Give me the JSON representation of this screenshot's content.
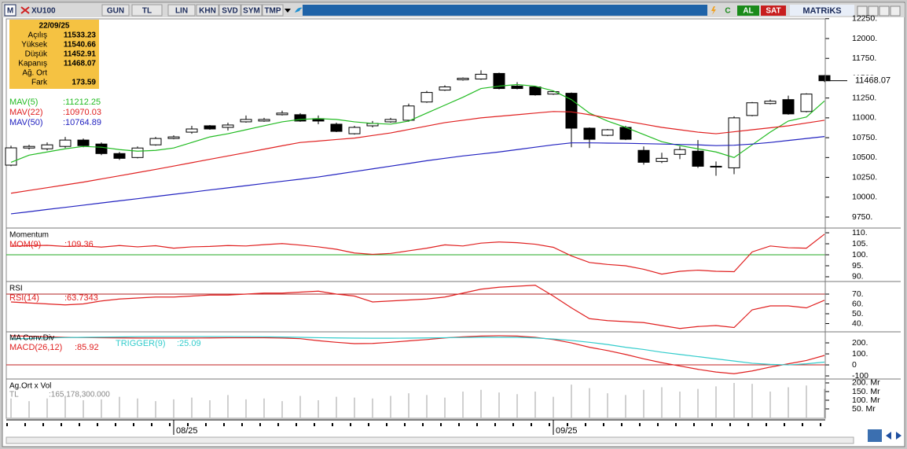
{
  "toolbar": {
    "logo": "M",
    "symbol": "XU100",
    "buttons": [
      "GUN",
      "TL",
      "LIN",
      "KHN",
      "SVD",
      "SYM",
      "TMP"
    ],
    "c": "C",
    "buy": "AL",
    "sell": "SAT",
    "brand": "MATRiKS"
  },
  "info": {
    "date": "22/09/25",
    "rows": [
      [
        "Açılış",
        "11533.23"
      ],
      [
        "Yüksek",
        "11540.66"
      ],
      [
        "Düşük",
        "11452.91"
      ],
      [
        "Kapanış",
        "11468.07"
      ],
      [
        "Ağ. Ort"
      ],
      [
        "Fark",
        "173.59"
      ]
    ]
  },
  "chart_data": [
    {
      "type": "candlestick",
      "categories": [
        null,
        null,
        null,
        null,
        null,
        null,
        null,
        null,
        null,
        "08/25",
        null,
        null,
        null,
        null,
        null,
        null,
        null,
        null,
        null,
        null,
        null,
        null,
        null,
        null,
        null,
        null,
        null,
        null,
        null,
        null,
        "09/25",
        null,
        null,
        null,
        null,
        null,
        null,
        null,
        null,
        null,
        null,
        null,
        null,
        null,
        null,
        null
      ],
      "open": [
        10404,
        10620,
        10610,
        10640,
        10720,
        10670,
        10550,
        10500,
        10660,
        10740,
        10820,
        10900,
        10880,
        10950,
        10960,
        11040,
        11040,
        10990,
        10920,
        10800,
        10900,
        10950,
        10970,
        11200,
        11350,
        11480,
        11490,
        11560,
        11400,
        11390,
        11300,
        11310,
        10870,
        10780,
        10880,
        10590,
        10450,
        10540,
        10580,
        10380,
        10370,
        11030,
        11180,
        11230,
        11080,
        11533.23
      ],
      "high": [
        10650,
        10660,
        10690,
        10760,
        10740,
        10690,
        10570,
        10640,
        10760,
        10780,
        10900,
        10910,
        10940,
        11030,
        11000,
        11090,
        11060,
        11030,
        10940,
        10900,
        10960,
        11000,
        11180,
        11340,
        11410,
        11510,
        11600,
        11570,
        11450,
        11400,
        11340,
        11320,
        10880,
        10860,
        10900,
        10640,
        10560,
        10640,
        10720,
        10450,
        11020,
        11200,
        11230,
        11280,
        11310,
        11540.66
      ],
      "low": [
        10390,
        10600,
        10590,
        10620,
        10630,
        10530,
        10470,
        10490,
        10650,
        10730,
        10800,
        10850,
        10840,
        10940,
        10950,
        11030,
        10950,
        10920,
        10820,
        10790,
        10880,
        10940,
        10950,
        11190,
        11340,
        11470,
        11480,
        11360,
        11360,
        11280,
        11290,
        10630,
        10620,
        10770,
        10720,
        10410,
        10430,
        10480,
        10370,
        10270,
        10290,
        11020,
        11170,
        11040,
        11070,
        11452.91
      ],
      "close": [
        10622,
        10640,
        10660,
        10720,
        10650,
        10550,
        10490,
        10620,
        10740,
        10760,
        10860,
        10860,
        10910,
        10980,
        10980,
        11060,
        10960,
        10960,
        10830,
        10880,
        10930,
        10980,
        11150,
        11320,
        11390,
        11500,
        11550,
        11370,
        11370,
        11290,
        11330,
        10870,
        10730,
        10850,
        10730,
        10440,
        10490,
        10600,
        10390,
        10390,
        11000,
        11190,
        11210,
        11050,
        11300,
        11468.07
      ],
      "up_color": "#ffffff",
      "down_color": "#000000",
      "last_label": "11468.07",
      "series": [
        {
          "name": "MAV(5)",
          "value_label": ":11212.25",
          "color": "#22bb22",
          "values": [
            10440,
            10530,
            10570,
            10610,
            10640,
            10630,
            10600,
            10580,
            10590,
            10620,
            10690,
            10760,
            10800,
            10850,
            10900,
            10950,
            10980,
            10990,
            10980,
            10950,
            10930,
            10920,
            10960,
            11060,
            11160,
            11260,
            11370,
            11400,
            11420,
            11400,
            11340,
            11230,
            11060,
            10960,
            10880,
            10790,
            10700,
            10650,
            10610,
            10570,
            10500,
            10660,
            10820,
            10960,
            11010,
            11212.25
          ]
        },
        {
          "name": "MAV(22)",
          "value_label": ":10970.03",
          "color": "#e02020",
          "values": [
            10050,
            10085,
            10120,
            10155,
            10190,
            10230,
            10270,
            10310,
            10350,
            10392,
            10435,
            10478,
            10520,
            10562,
            10605,
            10648,
            10690,
            10708,
            10727,
            10745,
            10778,
            10810,
            10853,
            10897,
            10940,
            10970,
            11000,
            11020,
            11040,
            11060,
            11080,
            11075,
            11040,
            11000,
            10960,
            10920,
            10880,
            10850,
            10820,
            10800,
            10825,
            10850,
            10875,
            10900,
            10935,
            10970.03
          ]
        },
        {
          "name": "MAV(50)",
          "value_label": ":10764.89",
          "color": "#2222c0",
          "values": [
            9790,
            9817,
            9845,
            9872,
            9899,
            9927,
            9954,
            9981,
            10009,
            10036,
            10063,
            10091,
            10118,
            10145,
            10173,
            10200,
            10227,
            10255,
            10289,
            10323,
            10357,
            10391,
            10425,
            10460,
            10490,
            10520,
            10545,
            10570,
            10600,
            10630,
            10660,
            10685,
            10685,
            10682,
            10680,
            10675,
            10670,
            10665,
            10660,
            10650,
            10655,
            10670,
            10690,
            10715,
            10740,
            10764.89
          ]
        }
      ],
      "ylim": [
        9621,
        12238
      ],
      "yticks": [
        {
          "value": 9750,
          "label": "9750."
        },
        {
          "value": 10000,
          "label": "10000."
        },
        {
          "value": 10250,
          "label": "10250."
        },
        {
          "value": 10500,
          "label": "10500."
        },
        {
          "value": 10750,
          "label": "10750."
        },
        {
          "value": 11000,
          "label": "11000."
        },
        {
          "value": 11250,
          "label": "11250."
        },
        {
          "value": 11500,
          "label": "11500."
        },
        {
          "value": 11750,
          "label": "11750."
        },
        {
          "value": 12000,
          "label": "12000."
        },
        {
          "value": 12250,
          "label": "12250."
        }
      ]
    },
    {
      "type": "line",
      "title": "Momentum",
      "reference": 100,
      "reference_color": "#22aa22",
      "series": [
        {
          "name": "MOM(9)",
          "value_label": ":109.36",
          "color": "#e02020",
          "values": [
            103.9,
            104.1,
            104.3,
            103.8,
            104.0,
            103.5,
            104.2,
            103.6,
            104.1,
            103.0,
            103.6,
            103.8,
            104.2,
            104.0,
            104.6,
            105.1,
            104.4,
            103.6,
            102.5,
            100.8,
            100.2,
            100.6,
            101.8,
            103.0,
            104.5,
            104.0,
            105.3,
            105.8,
            105.5,
            104.8,
            103.4,
            99.5,
            96.5,
            95.6,
            95.0,
            93.4,
            91.2,
            92.5,
            93.0,
            92.5,
            92.3,
            101.3,
            104.0,
            103.2,
            103.0,
            109.36
          ]
        }
      ],
      "ylim": [
        88.2,
        111.8
      ],
      "yticks": [
        {
          "value": 90,
          "label": "90."
        },
        {
          "value": 95,
          "label": "95."
        },
        {
          "value": 100,
          "label": "100."
        },
        {
          "value": 105,
          "label": "105."
        },
        {
          "value": 110,
          "label": "110."
        }
      ]
    },
    {
      "type": "line",
      "title": "RSI",
      "reference": 70,
      "reference_color": "#b02020",
      "series": [
        {
          "name": "RSI(14)",
          "value_label": ":63.7343",
          "color": "#e02020",
          "values": [
            62,
            61,
            60,
            59,
            60,
            63,
            65,
            66,
            67,
            67,
            68,
            69,
            69,
            70,
            71,
            71,
            72,
            73,
            70,
            68,
            62,
            63,
            64,
            65,
            67,
            71,
            75,
            77,
            78,
            79,
            68,
            56,
            45,
            43,
            42,
            41,
            38,
            35,
            37,
            38,
            36,
            54,
            58,
            58,
            56,
            63.7343
          ]
        }
      ],
      "ylim": [
        32.4,
        82
      ],
      "yticks": [
        {
          "value": 40,
          "label": "40."
        },
        {
          "value": 50,
          "label": "50."
        },
        {
          "value": 60,
          "label": "60."
        },
        {
          "value": 70,
          "label": "70."
        }
      ]
    },
    {
      "type": "line",
      "title": "MA Conv.Div",
      "reference": 0,
      "reference_color": "#c02020",
      "series": [
        {
          "name": "MACD(26,12)",
          "value_label": ":85.92",
          "color": "#e02020",
          "values": [
            265,
            260,
            255,
            250,
            248,
            246,
            245,
            244,
            244,
            244,
            244,
            245,
            246,
            246,
            246,
            244,
            238,
            220,
            205,
            193,
            195,
            205,
            218,
            230,
            245,
            255,
            262,
            265,
            262,
            250,
            230,
            200,
            160,
            130,
            95,
            55,
            20,
            -10,
            -40,
            -65,
            -80,
            -55,
            -20,
            10,
            40,
            85.92
          ]
        },
        {
          "name": "TRIGGER(9)",
          "value_label": ":25.09",
          "color": "#33cccc",
          "values": [
            235,
            240,
            245,
            248,
            250,
            252,
            254,
            256,
            257,
            257,
            257,
            257,
            257,
            256,
            255,
            253,
            250,
            247,
            245,
            243,
            242,
            242,
            243,
            245,
            247,
            249,
            251,
            251,
            250,
            245,
            235,
            222,
            205,
            185,
            160,
            140,
            115,
            95,
            75,
            55,
            35,
            15,
            5,
            0,
            10,
            25.09
          ]
        }
      ],
      "ylim": [
        -121,
        293
      ],
      "yticks": [
        {
          "value": -100,
          "label": "-100"
        },
        0,
        {
          "value": 100,
          "label": "100."
        },
        {
          "value": 200,
          "label": "200."
        }
      ]
    },
    {
      "type": "bar",
      "title": "Ag.Ort x Vol",
      "name": "TL",
      "value_label": ":165,178,300.000",
      "color": "#a0a0a0",
      "values": [
        110,
        95,
        110,
        120,
        100,
        105,
        120,
        110,
        95,
        105,
        115,
        100,
        130,
        105,
        110,
        95,
        125,
        100,
        120,
        115,
        110,
        125,
        140,
        130,
        115,
        150,
        160,
        145,
        135,
        150,
        120,
        190,
        170,
        140,
        130,
        160,
        175,
        150,
        165,
        180,
        200,
        195,
        150,
        175,
        185,
        165.18
      ],
      "ylim": [
        0,
        218
      ],
      "yticks": [
        {
          "value": 50,
          "label": "50. Mr"
        },
        {
          "value": 100,
          "label": "100. Mr"
        },
        {
          "value": 150,
          "label": "150. Mr"
        },
        {
          "value": 200,
          "label": "200. Mr"
        }
      ]
    }
  ]
}
